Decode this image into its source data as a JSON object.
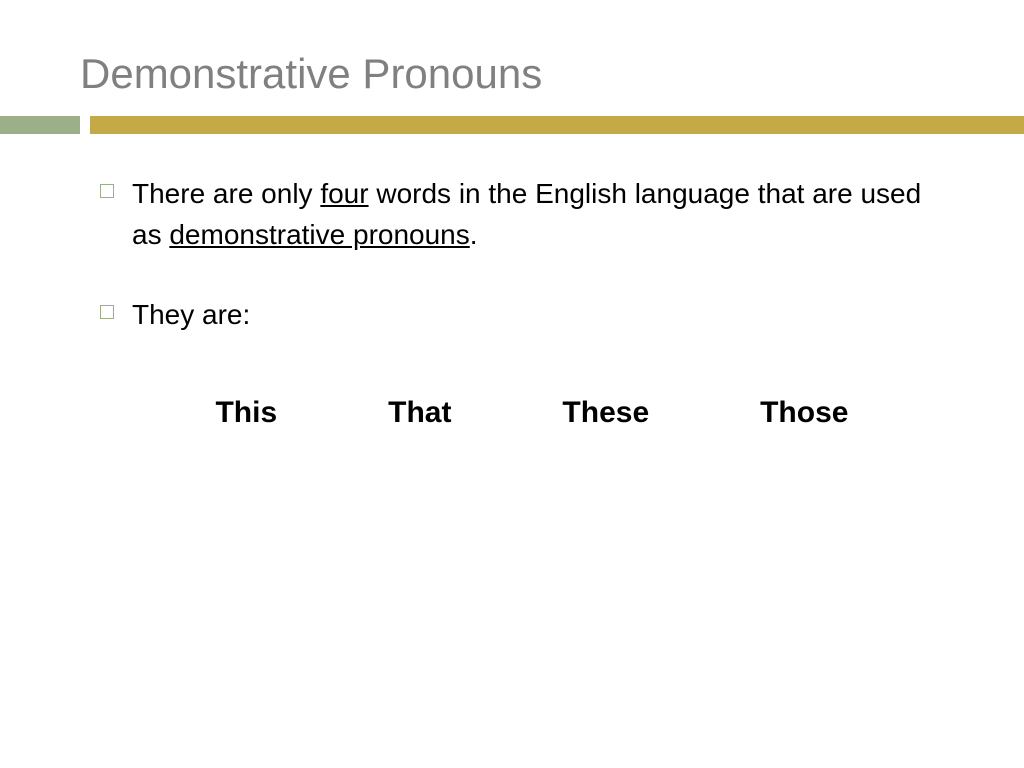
{
  "slide": {
    "title": "Demonstrative Pronouns",
    "title_color": "#808080",
    "title_fontsize": 42,
    "accent_green_color": "#9baf88",
    "accent_gold_color": "#c4a947",
    "background_color": "#ffffff",
    "bullets": [
      {
        "text_before_underline1": "There are only ",
        "underline1": "four",
        "text_middle": " words in the English language that are used as ",
        "underline2": "demonstrative pronouns",
        "text_after": "."
      },
      {
        "text": "They are:"
      }
    ],
    "bullet_fontsize": 28,
    "bullet_marker_color": "#9baf88",
    "pronouns": [
      "This",
      "That",
      "These",
      "Those"
    ],
    "pronoun_fontsize": 30,
    "pronoun_fontweight": "bold"
  }
}
